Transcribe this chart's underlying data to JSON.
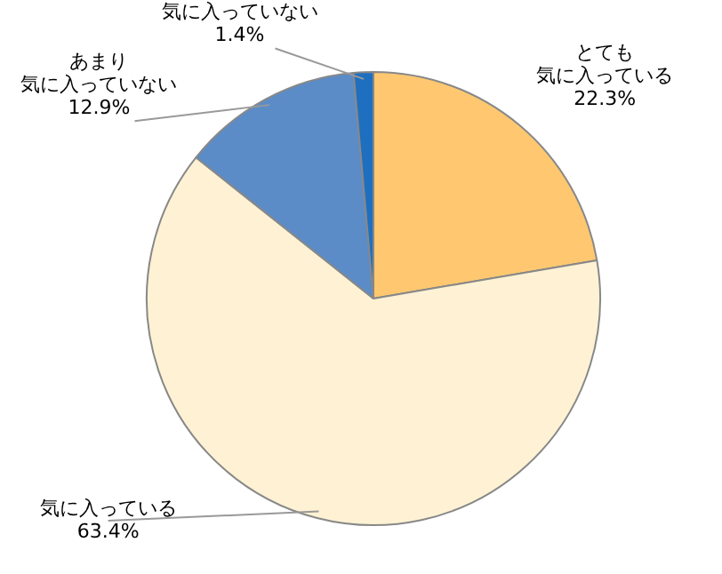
{
  "chart_data": {
    "type": "pie",
    "categories": [
      "とても気に入っている",
      "気に入っている",
      "あまり気に入っていない",
      "気に入っていない"
    ],
    "values": [
      22.3,
      63.4,
      12.9,
      1.4
    ],
    "colors": [
      "#ffc870",
      "#fff2d4",
      "#5b8cc8",
      "#1f6fc0"
    ],
    "value_labels": [
      "22.3%",
      "63.4%",
      "12.9%",
      "1.4%"
    ],
    "legend": false
  }
}
